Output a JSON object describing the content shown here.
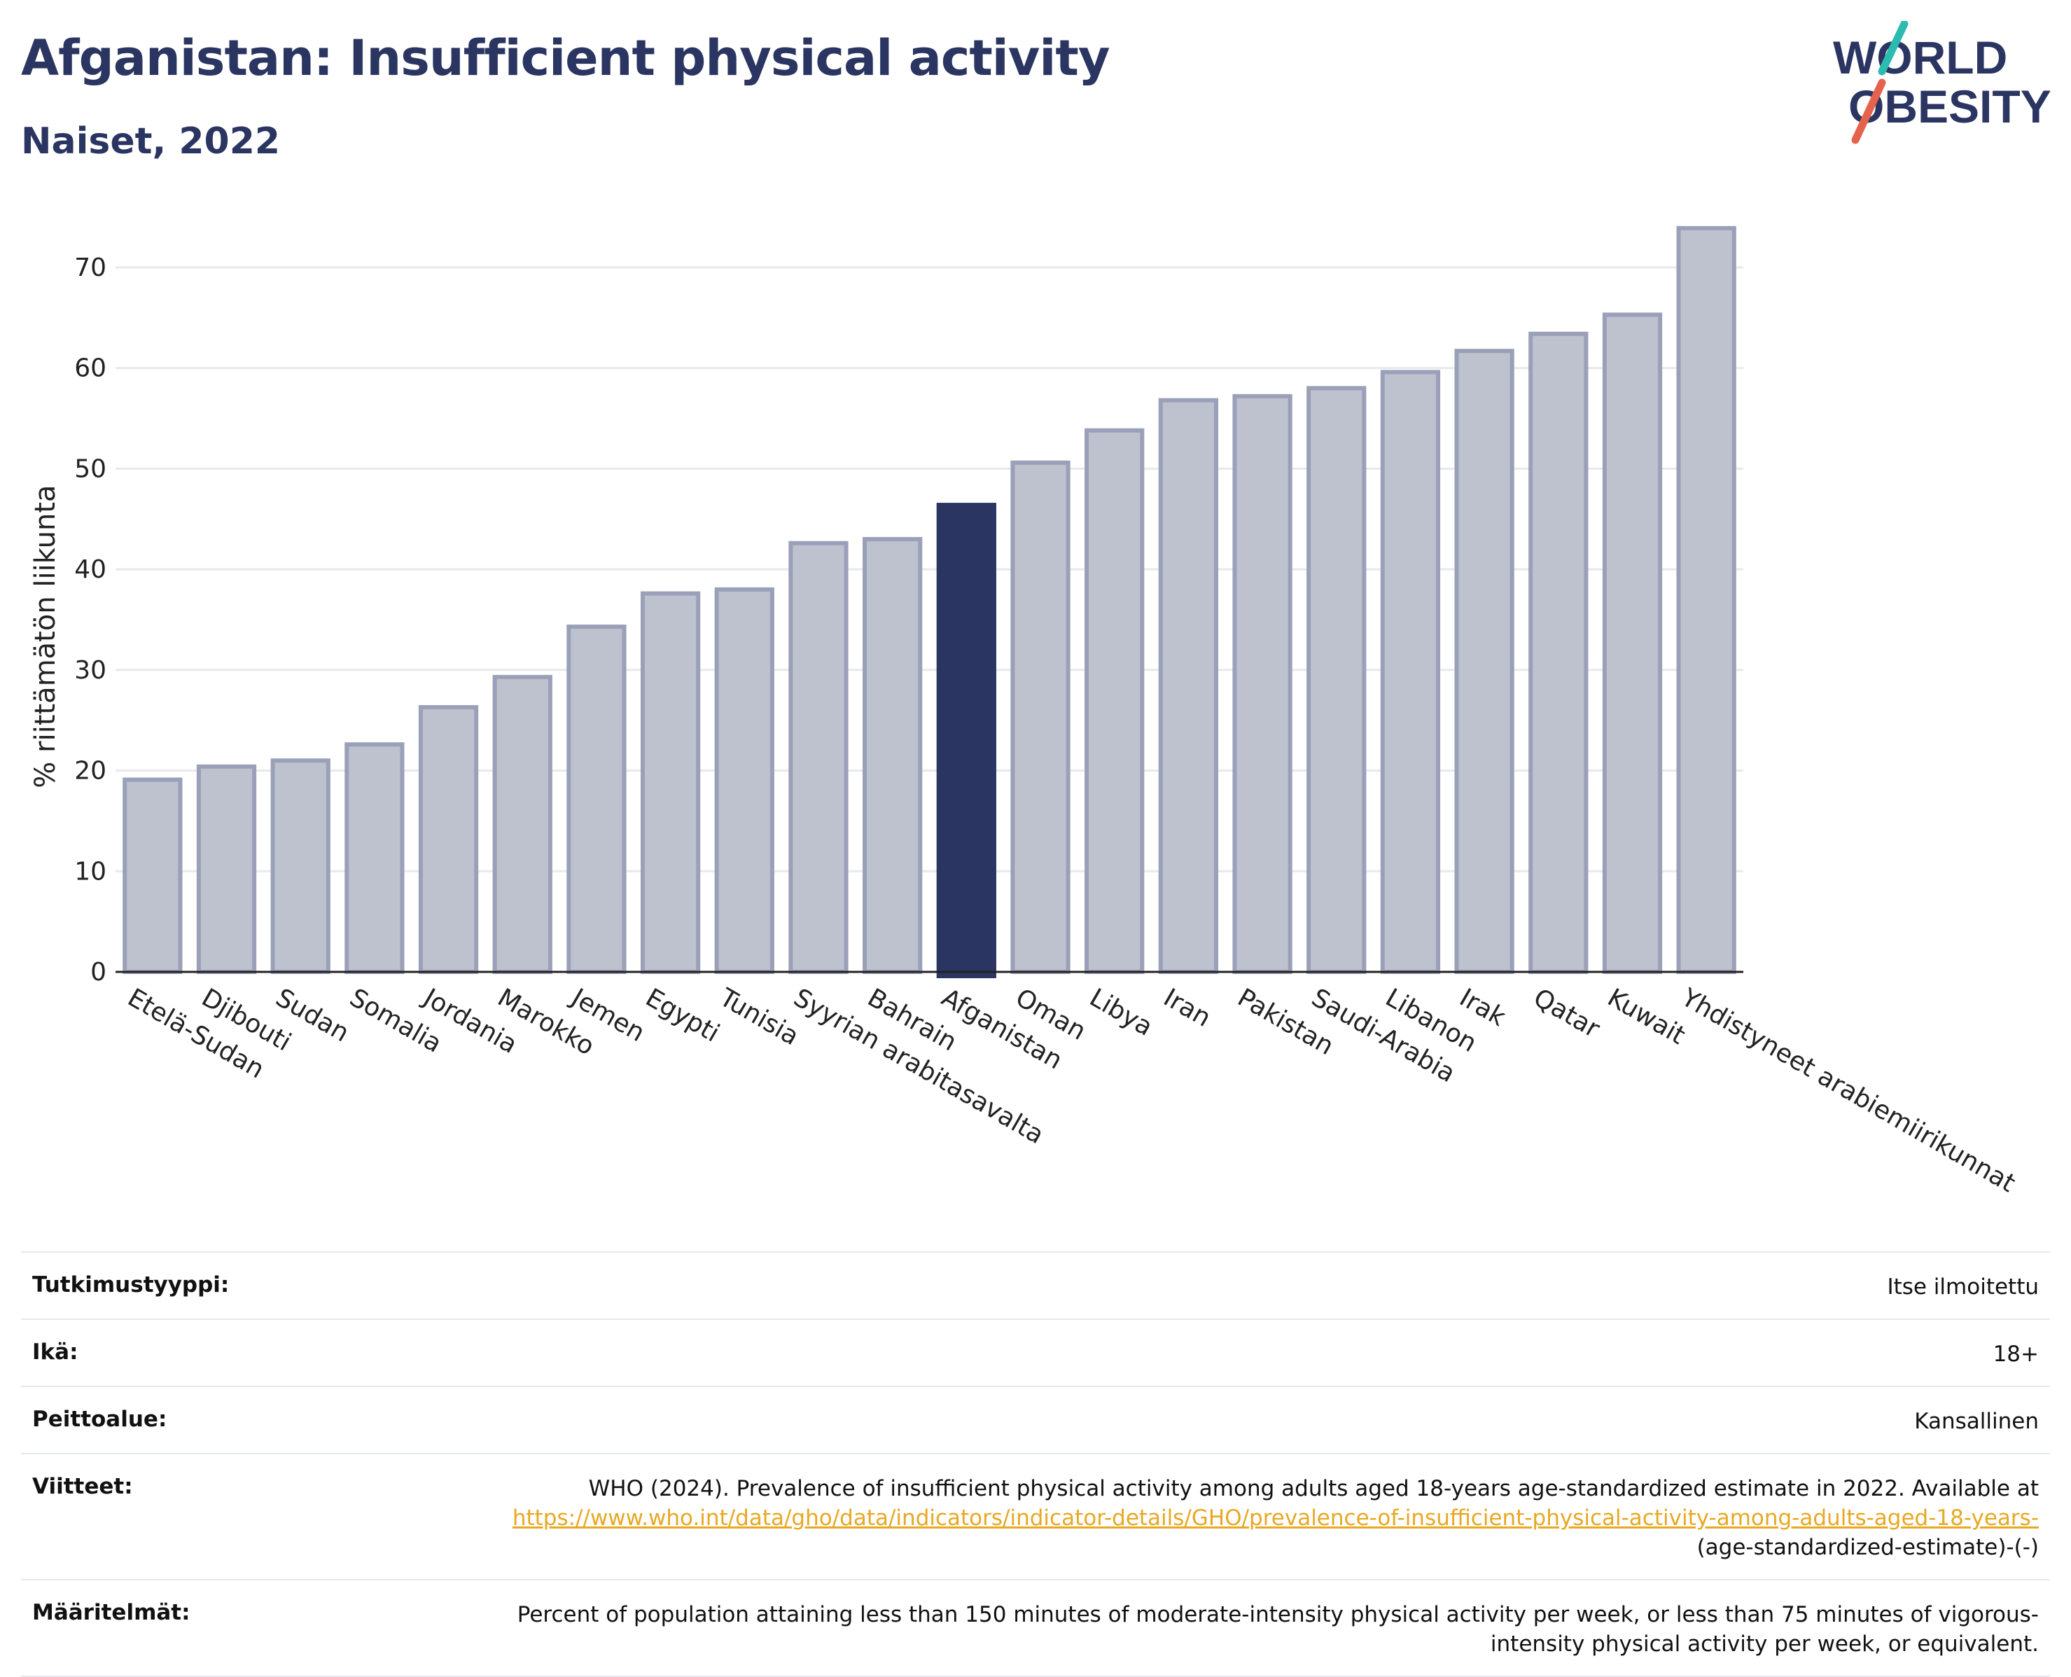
{
  "header": {
    "title": "Afganistan: Insufficient physical activity",
    "subtitle": "Naiset, 2022"
  },
  "logo": {
    "line1": "WORLD",
    "line2": "OBESITY"
  },
  "colors": {
    "highlight": "#2b3561",
    "bar": "#bec1ce",
    "bar_stroke": "#9aa0b8",
    "accent_teal": "#2bbbb0",
    "accent_coral": "#e5634d",
    "link": "#e8a822"
  },
  "chart_data": {
    "type": "bar",
    "ylabel": "% riittämätön liikunta",
    "ylim": [
      0,
      75
    ],
    "yticks": [
      0,
      10,
      20,
      30,
      40,
      50,
      60,
      70
    ],
    "grid": true,
    "highlight": "Afganistan",
    "categories": [
      "Etelä-Sudan",
      "Djibouti",
      "Sudan",
      "Somalia",
      "Jordania",
      "Marokko",
      "Jemen",
      "Egypti",
      "Tunisia",
      "Syyrian arabitasavalta",
      "Bahrain",
      "Afganistan",
      "Oman",
      "Libya",
      "Iran",
      "Pakistan",
      "Saudi-Arabia",
      "Libanon",
      "Irak",
      "Qatar",
      "Kuwait",
      "Yhdistyneet arabiemiirikunnat"
    ],
    "values": [
      19.1,
      20.4,
      21.0,
      22.6,
      26.3,
      29.3,
      34.3,
      37.6,
      38.0,
      42.6,
      43.0,
      46.4,
      50.6,
      53.8,
      56.8,
      57.2,
      58.0,
      59.6,
      61.7,
      63.4,
      65.3,
      73.9
    ]
  },
  "meta": {
    "rows": [
      {
        "label": "Tutkimustyyppi:",
        "value": "Itse ilmoitettu"
      },
      {
        "label": "Ikä:",
        "value": "18+"
      },
      {
        "label": "Peittoalue:",
        "value": "Kansallinen"
      }
    ],
    "references": {
      "label": "Viitteet:",
      "text": "WHO (2024). Prevalence of insufficient physical activity among adults aged 18-years age-standardized estimate in 2022. Available at",
      "link": "https://www.who.int/data/gho/data/indicators/indicator-details/GHO/prevalence-of-insufficient-physical-activity-among-adults-aged-18-years-",
      "suffix": "(age-standardized-estimate)-(-)"
    },
    "definitions": {
      "label": "Määritelmät:",
      "text": "Percent of population attaining less than 150 minutes of moderate-intensity physical activity per week, or less than 75 minutes of vigorous-intensity physical activity per week, or equivalent."
    }
  }
}
